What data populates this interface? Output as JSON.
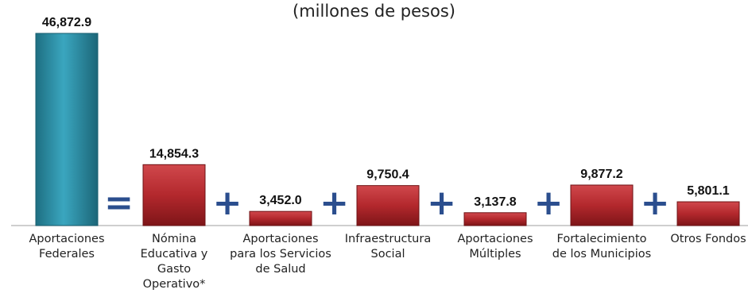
{
  "subtitle": "(millones de pesos)",
  "chart_data": {
    "type": "bar",
    "categories": [
      "Aportaciones\nFederales",
      "Nómina\nEducativa y\nGasto\nOperativo*",
      "Aportaciones\npara los Servicios\nde Salud",
      "Infraestructura\nSocial",
      "Aportaciones\nMúltiples",
      "Fortalecimiento\nde los Municipios",
      "Otros Fondos"
    ],
    "values": [
      46872.9,
      14854.3,
      3452.0,
      9750.4,
      3137.8,
      9877.2,
      5801.1
    ],
    "value_labels": [
      "46,872.9",
      "14,854.3",
      "3,452.0",
      "9,750.4",
      "3,137.8",
      "9,877.2",
      "5,801.1"
    ],
    "operators": [
      "=",
      "+",
      "+",
      "+",
      "+",
      "+"
    ],
    "colors": [
      "#2E8FA6",
      "#B3282D",
      "#B3282D",
      "#B3282D",
      "#B3282D",
      "#B3282D",
      "#B3282D"
    ],
    "ylim": [
      0,
      46872.9
    ],
    "grid": false,
    "legend": "none"
  }
}
